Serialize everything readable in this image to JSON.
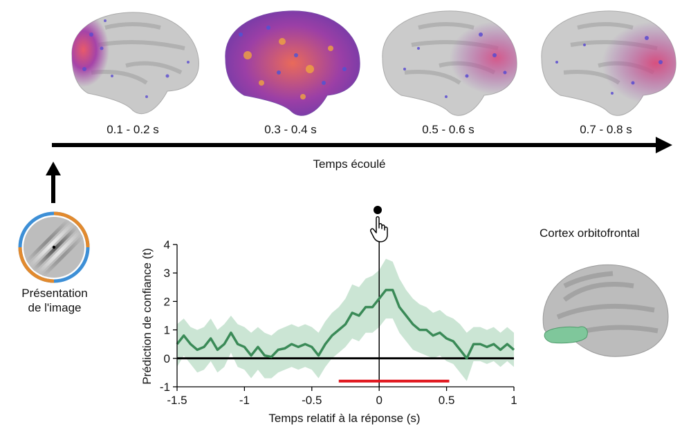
{
  "timeline": {
    "windows": [
      {
        "label": "0.1 - 0.2 s",
        "activation": "anterior"
      },
      {
        "label": "0.3 - 0.4 s",
        "activation": "widespread"
      },
      {
        "label": "0.5 - 0.6 s",
        "activation": "posterior"
      },
      {
        "label": "0.7 - 0.8 s",
        "activation": "posterior"
      }
    ],
    "axis_label": "Temps écoulé"
  },
  "stimulus": {
    "caption_line1": "Présentation",
    "caption_line2": "de l'image",
    "ring_colors": [
      "#3d8fd6",
      "#e28a2e"
    ]
  },
  "region": {
    "title": "Cortex orbitofrontal",
    "highlight_color": "#7fc79b"
  },
  "response_marker": {
    "icon": "pointing-hand-icon"
  },
  "chart_data": {
    "type": "line",
    "xlabel": "Temps relatif à la réponse (s)",
    "ylabel": "Prédiction de confiance (t)",
    "xlim": [
      -1.5,
      1
    ],
    "ylim": [
      -1,
      4
    ],
    "xticks": [
      "-1.5",
      "-1",
      "-0.5",
      "0",
      "0.5",
      "1"
    ],
    "yticks": [
      "-1",
      "0",
      "1",
      "2",
      "3",
      "4"
    ],
    "line_color": "#3a8a57",
    "band_color": "#b9dcc6",
    "significance_bar": {
      "start": -0.3,
      "end": 0.52,
      "y": -0.8,
      "color": "#e0141c"
    },
    "x": [
      -1.5,
      -1.45,
      -1.4,
      -1.35,
      -1.3,
      -1.25,
      -1.2,
      -1.15,
      -1.1,
      -1.05,
      -1.0,
      -0.95,
      -0.9,
      -0.85,
      -0.8,
      -0.75,
      -0.7,
      -0.65,
      -0.6,
      -0.55,
      -0.5,
      -0.45,
      -0.4,
      -0.35,
      -0.3,
      -0.25,
      -0.2,
      -0.15,
      -0.1,
      -0.05,
      0.0,
      0.05,
      0.1,
      0.15,
      0.2,
      0.25,
      0.3,
      0.35,
      0.4,
      0.45,
      0.5,
      0.55,
      0.6,
      0.65,
      0.7,
      0.75,
      0.8,
      0.85,
      0.9,
      0.95,
      1.0
    ],
    "y": [
      0.5,
      0.8,
      0.5,
      0.3,
      0.4,
      0.7,
      0.3,
      0.5,
      0.9,
      0.5,
      0.4,
      0.1,
      0.4,
      0.1,
      0.05,
      0.3,
      0.35,
      0.5,
      0.4,
      0.5,
      0.4,
      0.1,
      0.5,
      0.8,
      1.0,
      1.2,
      1.6,
      1.5,
      1.8,
      1.8,
      2.1,
      2.4,
      2.4,
      1.8,
      1.5,
      1.2,
      1.0,
      1.0,
      0.8,
      0.9,
      0.7,
      0.6,
      0.3,
      0.0,
      0.5,
      0.5,
      0.4,
      0.5,
      0.3,
      0.5,
      0.3
    ],
    "upper": [
      1.2,
      1.4,
      1.1,
      1.0,
      1.1,
      1.4,
      1.0,
      1.2,
      1.5,
      1.2,
      1.1,
      0.9,
      1.1,
      0.9,
      0.8,
      1.0,
      1.1,
      1.2,
      1.1,
      1.2,
      1.1,
      0.9,
      1.3,
      1.6,
      1.8,
      2.1,
      2.6,
      2.5,
      2.8,
      2.9,
      3.1,
      3.5,
      3.4,
      2.8,
      2.4,
      2.1,
      1.9,
      1.8,
      1.6,
      1.7,
      1.5,
      1.4,
      1.2,
      0.9,
      1.1,
      1.1,
      1.0,
      1.1,
      0.9,
      1.1,
      0.9
    ],
    "lower": [
      -0.3,
      0.1,
      -0.2,
      -0.5,
      -0.4,
      -0.1,
      -0.5,
      -0.3,
      0.2,
      -0.3,
      -0.4,
      -0.7,
      -0.4,
      -0.7,
      -0.7,
      -0.5,
      -0.4,
      -0.3,
      -0.4,
      -0.3,
      -0.4,
      -0.7,
      -0.3,
      0.0,
      0.2,
      0.4,
      0.7,
      0.6,
      0.9,
      0.9,
      1.1,
      1.4,
      1.4,
      0.9,
      0.6,
      0.3,
      0.2,
      0.1,
      0.0,
      0.1,
      -0.1,
      -0.2,
      -0.5,
      -0.8,
      -0.1,
      -0.1,
      -0.2,
      -0.1,
      -0.3,
      -0.1,
      -0.3
    ]
  }
}
